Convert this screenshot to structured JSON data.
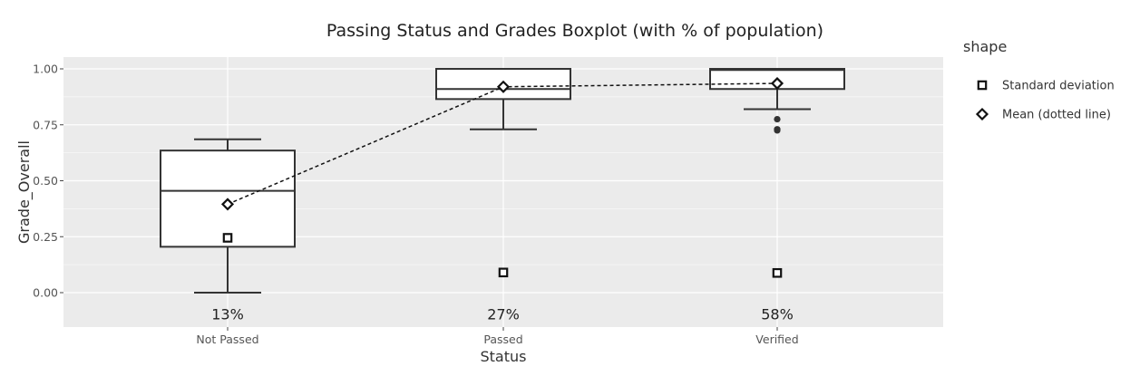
{
  "chart_data": {
    "type": "box",
    "title": "Passing Status and Grades Boxplot (with % of population)",
    "xlabel": "Status",
    "ylabel": "Grade_Overall",
    "ylim": [
      -0.15,
      1.06
    ],
    "yticks": [
      0,
      0.25,
      0.5,
      0.75,
      1
    ],
    "ytick_labels": [
      "0.00",
      "0.25",
      "0.50",
      "0.75",
      "1.00"
    ],
    "grid": true,
    "categories": [
      "Not Passed",
      "Passed",
      "Verified"
    ],
    "boxes": [
      {
        "category": "Not Passed",
        "whisker_low": 0.0,
        "q1": 0.205,
        "median": 0.455,
        "q3": 0.635,
        "whisker_high": 0.685,
        "outliers": []
      },
      {
        "category": "Passed",
        "whisker_low": 0.73,
        "q1": 0.865,
        "median": 0.91,
        "q3": 1.0,
        "whisker_high": 1.0,
        "outliers": []
      },
      {
        "category": "Verified",
        "whisker_low": 0.82,
        "q1": 0.91,
        "median": 0.995,
        "q3": 1.0,
        "whisker_high": 1.0,
        "outliers": [
          0.775,
          0.73,
          0.725
        ]
      }
    ],
    "mean_series": {
      "name": "Mean (dotted line)",
      "values": [
        0.395,
        0.92,
        0.935
      ]
    },
    "sd_series": {
      "name": "Standard deviation",
      "values": [
        0.245,
        0.09,
        0.088
      ]
    },
    "percent_labels": [
      "13%",
      "27%",
      "58%"
    ],
    "percent_label_y": -0.095,
    "legend": {
      "title": "shape",
      "position": "right",
      "items": [
        {
          "label": "Standard deviation",
          "symbol": "square"
        },
        {
          "label": "Mean (dotted line)",
          "symbol": "diamond"
        }
      ]
    },
    "colors": {
      "panel_bg": "#ebebeb",
      "grid": "#ffffff",
      "box_fill": "#ffffff",
      "stroke": "#333333",
      "text": "#222222"
    }
  }
}
